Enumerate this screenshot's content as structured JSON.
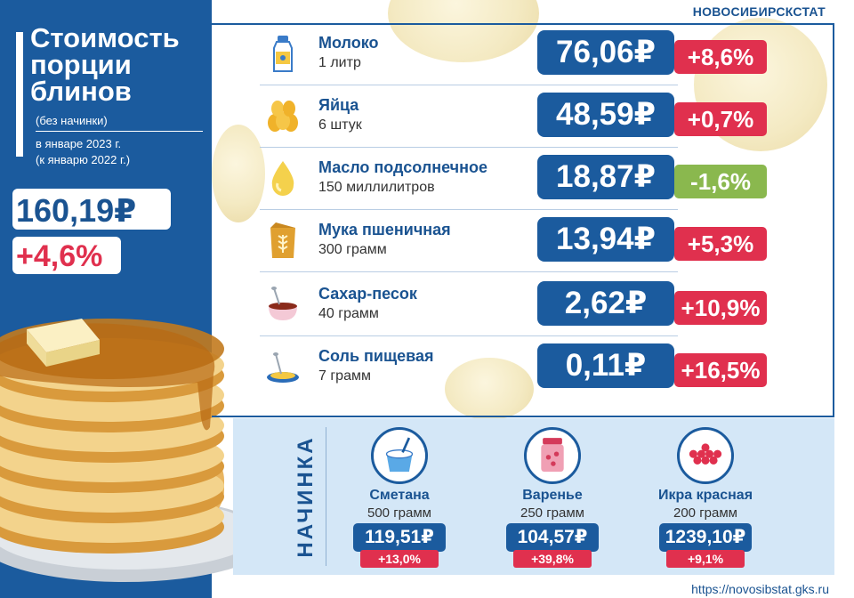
{
  "header": {
    "agency": "НОВОСИБИРСКСТАТ"
  },
  "title": {
    "main": "Стоимость порции блинов",
    "subtitle": "(без начинки)",
    "period_1": "в январе 2023 г.",
    "period_2": "(к январю 2022 г.)"
  },
  "total": {
    "price": "160,19₽",
    "change": "+4,6%"
  },
  "ingredients": [
    {
      "name": "Молоко",
      "qty": "1 литр",
      "price": "76,06₽",
      "change": "+8,6%",
      "direction": "up",
      "icon": "milk-bottle-icon"
    },
    {
      "name": "Яйца",
      "qty": "6 штук",
      "price": "48,59₽",
      "change": "+0,7%",
      "direction": "up",
      "icon": "eggs-icon"
    },
    {
      "name": "Масло подсолнечное",
      "qty": "150 миллилитров",
      "price": "18,87₽",
      "change": "-1,6%",
      "direction": "down",
      "icon": "oil-drop-icon"
    },
    {
      "name": "Мука пшеничная",
      "qty": "300 грамм",
      "price": "13,94₽",
      "change": "+5,3%",
      "direction": "up",
      "icon": "flour-bag-icon"
    },
    {
      "name": "Сахар-песок",
      "qty": "40 грамм",
      "price": "2,62₽",
      "change": "+10,9%",
      "direction": "up",
      "icon": "sugar-bowl-icon"
    },
    {
      "name": "Соль пищевая",
      "qty": "7 грамм",
      "price": "0,11₽",
      "change": "+16,5%",
      "direction": "up",
      "icon": "salt-spoon-icon"
    }
  ],
  "filling": {
    "label": "НАЧИНКА",
    "items": [
      {
        "name": "Сметана",
        "qty": "500 грамм",
        "price": "119,51₽",
        "change": "+13,0%",
        "icon": "sour-cream-icon"
      },
      {
        "name": "Варенье",
        "qty": "250 грамм",
        "price": "104,57₽",
        "change": "+39,8%",
        "icon": "jam-jar-icon"
      },
      {
        "name": "Икра красная",
        "qty": "200 грамм",
        "price": "1239,10₽",
        "change": "+9,1%",
        "icon": "red-caviar-icon"
      }
    ]
  },
  "footer": {
    "site": "https://novosibstat.gks.ru"
  },
  "colors": {
    "blue": "#1b5b9e",
    "red": "#e0304e",
    "green": "#8ab84e",
    "light_blue": "#d4e7f7"
  }
}
